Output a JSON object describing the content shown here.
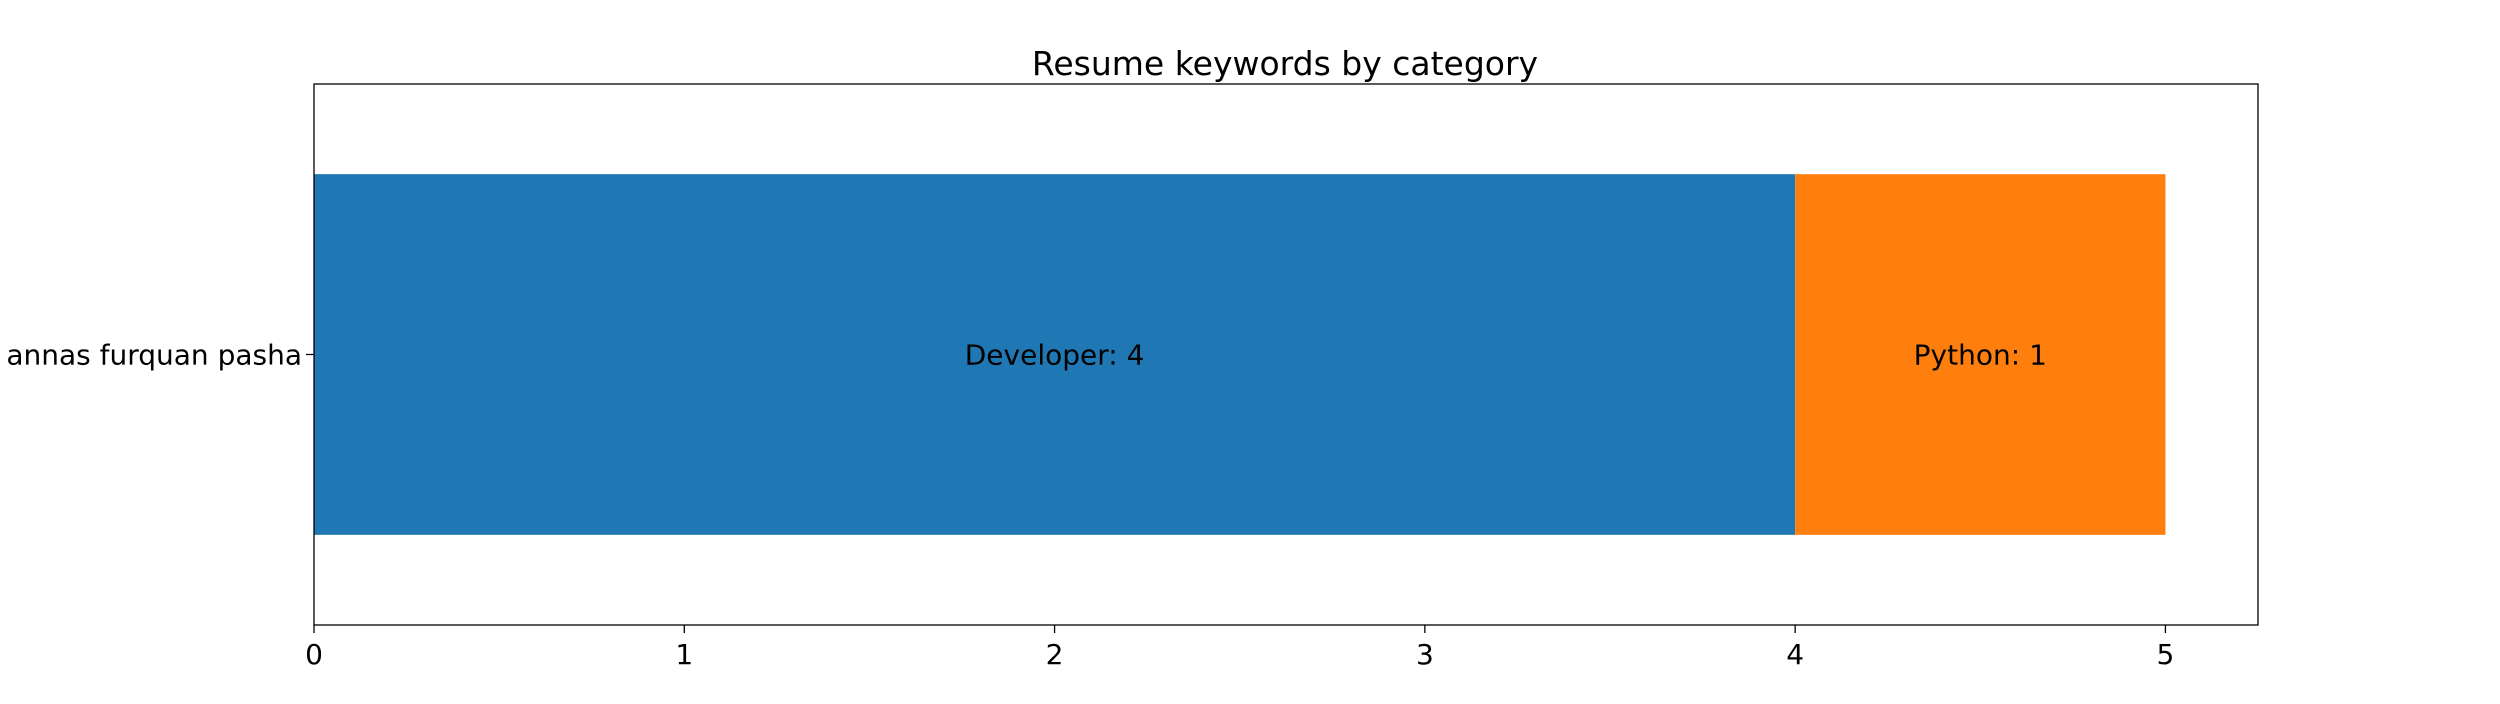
{
  "chart_data": {
    "type": "bar",
    "orientation": "horizontal",
    "stacked": true,
    "title": "Resume keywords by category",
    "xlabel": "",
    "ylabel": "",
    "categories": [
      "annas furquan pasha"
    ],
    "series": [
      {
        "name": "Developer",
        "values": [
          4
        ],
        "label_text": "Developer: 4",
        "color": "#1f77b4"
      },
      {
        "name": "Python",
        "values": [
          1
        ],
        "label_text": "Python: 1",
        "color": "#ff7f0e"
      }
    ],
    "xlim": [
      0,
      5.25
    ],
    "xticks": [
      0,
      1,
      2,
      3,
      4,
      5
    ],
    "grid": false,
    "legend": "none"
  }
}
